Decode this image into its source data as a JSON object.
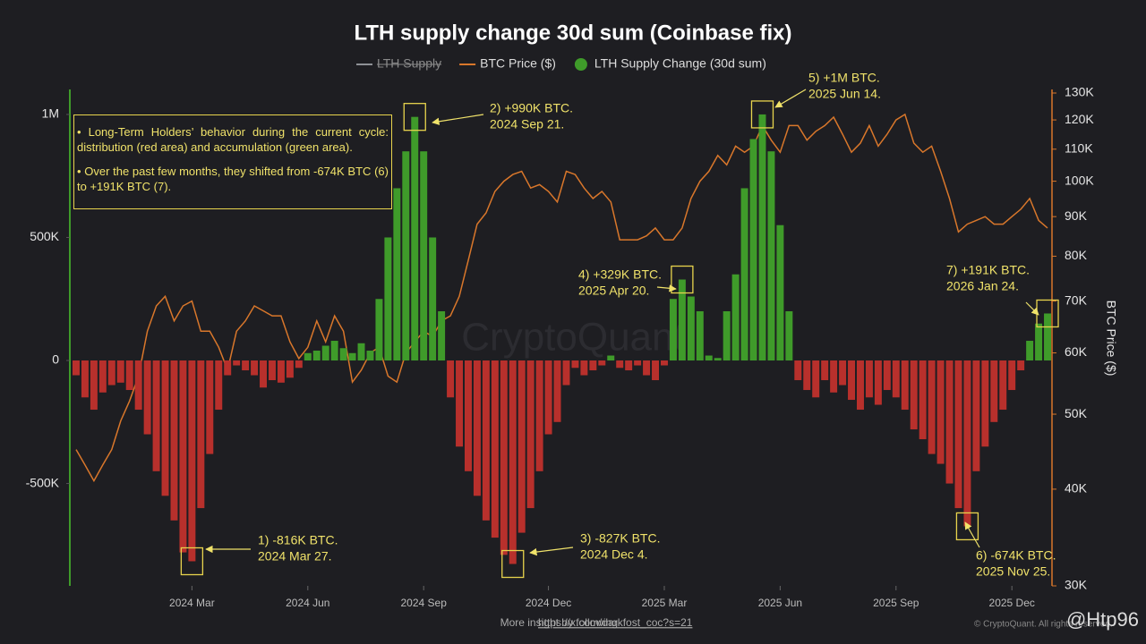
{
  "chart_data": {
    "type": "bar",
    "title": "LTH supply change 30d sum (Coinbase fix)",
    "y2label": "BTC Price ($)",
    "categories": [
      null,
      null,
      null,
      null,
      null,
      null,
      null,
      null,
      null,
      null,
      null,
      null,
      null,
      "2024 Mar",
      null,
      null,
      null,
      null,
      null,
      null,
      null,
      null,
      null,
      null,
      null,
      null,
      "2024 Jun",
      null,
      null,
      null,
      null,
      null,
      null,
      null,
      null,
      null,
      null,
      null,
      null,
      "2024 Sep",
      null,
      null,
      null,
      null,
      null,
      null,
      null,
      null,
      null,
      null,
      null,
      null,
      null,
      "2024 Dec",
      null,
      null,
      null,
      null,
      null,
      null,
      null,
      null,
      null,
      null,
      null,
      null,
      "2025 Mar",
      null,
      null,
      null,
      null,
      null,
      null,
      null,
      null,
      null,
      null,
      null,
      null,
      "2025 Jun",
      null,
      null,
      null,
      null,
      null,
      null,
      null,
      null,
      null,
      null,
      null,
      null,
      "2025 Sep",
      null,
      null,
      null,
      null,
      null,
      null,
      null,
      null,
      null,
      null,
      null,
      null,
      "2025 Dec",
      null,
      null,
      null,
      null
    ],
    "series": [
      {
        "name": "LTH Supply",
        "color": "#8e9196",
        "visible": false
      },
      {
        "name": "BTC Price ($)",
        "color": "#d9772b",
        "type": "line",
        "axis": "y2",
        "values": [
          45000,
          43000,
          41000,
          43000,
          45000,
          49000,
          52000,
          56000,
          64000,
          69000,
          71000,
          66000,
          69000,
          70000,
          64000,
          64000,
          61000,
          57000,
          64000,
          66000,
          69000,
          68000,
          67000,
          67000,
          62000,
          59000,
          61000,
          66000,
          62000,
          67000,
          64000,
          55000,
          57000,
          60000,
          61000,
          56000,
          55000,
          60000,
          62000,
          64000,
          63000,
          66000,
          67000,
          71000,
          79000,
          88000,
          91000,
          97000,
          100000,
          102000,
          103000,
          98000,
          99000,
          97000,
          94000,
          103000,
          102000,
          98000,
          95000,
          97000,
          94000,
          84000,
          84000,
          84000,
          85000,
          87000,
          84000,
          84000,
          87000,
          95000,
          100000,
          103000,
          108000,
          105000,
          111000,
          109000,
          111000,
          118000,
          113000,
          109000,
          118000,
          118000,
          113000,
          116000,
          118000,
          121000,
          115000,
          109000,
          112000,
          118000,
          111000,
          115000,
          120000,
          122000,
          112000,
          109000,
          111000,
          103000,
          95000,
          86000,
          88000,
          89000,
          90000,
          88000,
          88000,
          90000,
          92000,
          95000,
          89000,
          87000
        ]
      },
      {
        "name": "LTH Supply Change (30d sum)",
        "color": "#3f9b2a",
        "negative_color": "#b8302c",
        "values": [
          -60000,
          -150000,
          -200000,
          -130000,
          -100000,
          -90000,
          -120000,
          -200000,
          -300000,
          -450000,
          -550000,
          -650000,
          -780000,
          -816000,
          -600000,
          -380000,
          -200000,
          -60000,
          -20000,
          -40000,
          -60000,
          -110000,
          -80000,
          -90000,
          -70000,
          -30000,
          30000,
          40000,
          60000,
          80000,
          50000,
          30000,
          70000,
          40000,
          250000,
          500000,
          700000,
          850000,
          990000,
          850000,
          500000,
          200000,
          -150000,
          -350000,
          -450000,
          -550000,
          -650000,
          -720000,
          -790000,
          -827000,
          -700000,
          -600000,
          -450000,
          -300000,
          -250000,
          -100000,
          -30000,
          -60000,
          -40000,
          -20000,
          20000,
          -30000,
          -40000,
          -20000,
          -60000,
          -80000,
          -20000,
          250000,
          329000,
          260000,
          200000,
          20000,
          10000,
          200000,
          350000,
          700000,
          900000,
          1000000,
          850000,
          550000,
          200000,
          -80000,
          -120000,
          -150000,
          -80000,
          -130000,
          -100000,
          -160000,
          -200000,
          -150000,
          -180000,
          -120000,
          -150000,
          -200000,
          -280000,
          -320000,
          -380000,
          -420000,
          -500000,
          -600000,
          -674000,
          -450000,
          -350000,
          -250000,
          -200000,
          -120000,
          -40000,
          80000,
          150000,
          191000
        ]
      }
    ],
    "ylim": [
      -916000,
      1087000
    ],
    "yticks": [
      {
        "value": -500000,
        "label": "-500K"
      },
      0,
      {
        "value": 500000,
        "label": "500K"
      },
      {
        "value": 1000000,
        "label": "1M"
      }
    ],
    "y2lim": [
      30000,
      130000
    ],
    "y2scale": "log",
    "y2ticks": [
      {
        "value": 30000,
        "label": "30K"
      },
      {
        "value": 40000,
        "label": "40K"
      },
      {
        "value": 50000,
        "label": "50K"
      },
      {
        "value": 60000,
        "label": "60K"
      },
      {
        "value": 70000,
        "label": "70K"
      },
      {
        "value": 80000,
        "label": "80K"
      },
      {
        "value": 90000,
        "label": "90K"
      },
      {
        "value": 100000,
        "label": "100K"
      },
      {
        "value": 110000,
        "label": "110K"
      },
      {
        "value": 120000,
        "label": "120K"
      },
      {
        "value": 130000,
        "label": "130K"
      }
    ],
    "grid": false,
    "note": [
      "• Long-Term Holders’ behavior during the current cycle: distribution (red area) and accumulation (green area).",
      "• Over the past few months, they shifted from -674K BTC (6) to +191K BTC (7)."
    ],
    "annotations": [
      {
        "lines": [
          "1) -816K BTC.",
          "2024 Mar 27."
        ]
      },
      {
        "lines": [
          "2) +990K BTC.",
          "2024 Sep 21."
        ]
      },
      {
        "lines": [
          "3) -827K BTC.",
          "2024 Dec 4."
        ]
      },
      {
        "lines": [
          "4) +329K BTC.",
          "2025 Apr 20."
        ]
      },
      {
        "lines": [
          "5) +1M BTC.",
          "2025 Jun 14."
        ]
      },
      {
        "lines": [
          "6) -674K BTC.",
          "2025 Nov 25."
        ]
      },
      {
        "lines": [
          "7) +191K BTC.",
          "2026 Jan 24."
        ]
      }
    ],
    "watermark": "CryptoQuant",
    "footer": "More insight by following",
    "footer_link": "https://x.com/darkfost_coc?s=21",
    "credit": "© CryptoQuant. All rights reserved.",
    "handle": "@Htp96"
  }
}
